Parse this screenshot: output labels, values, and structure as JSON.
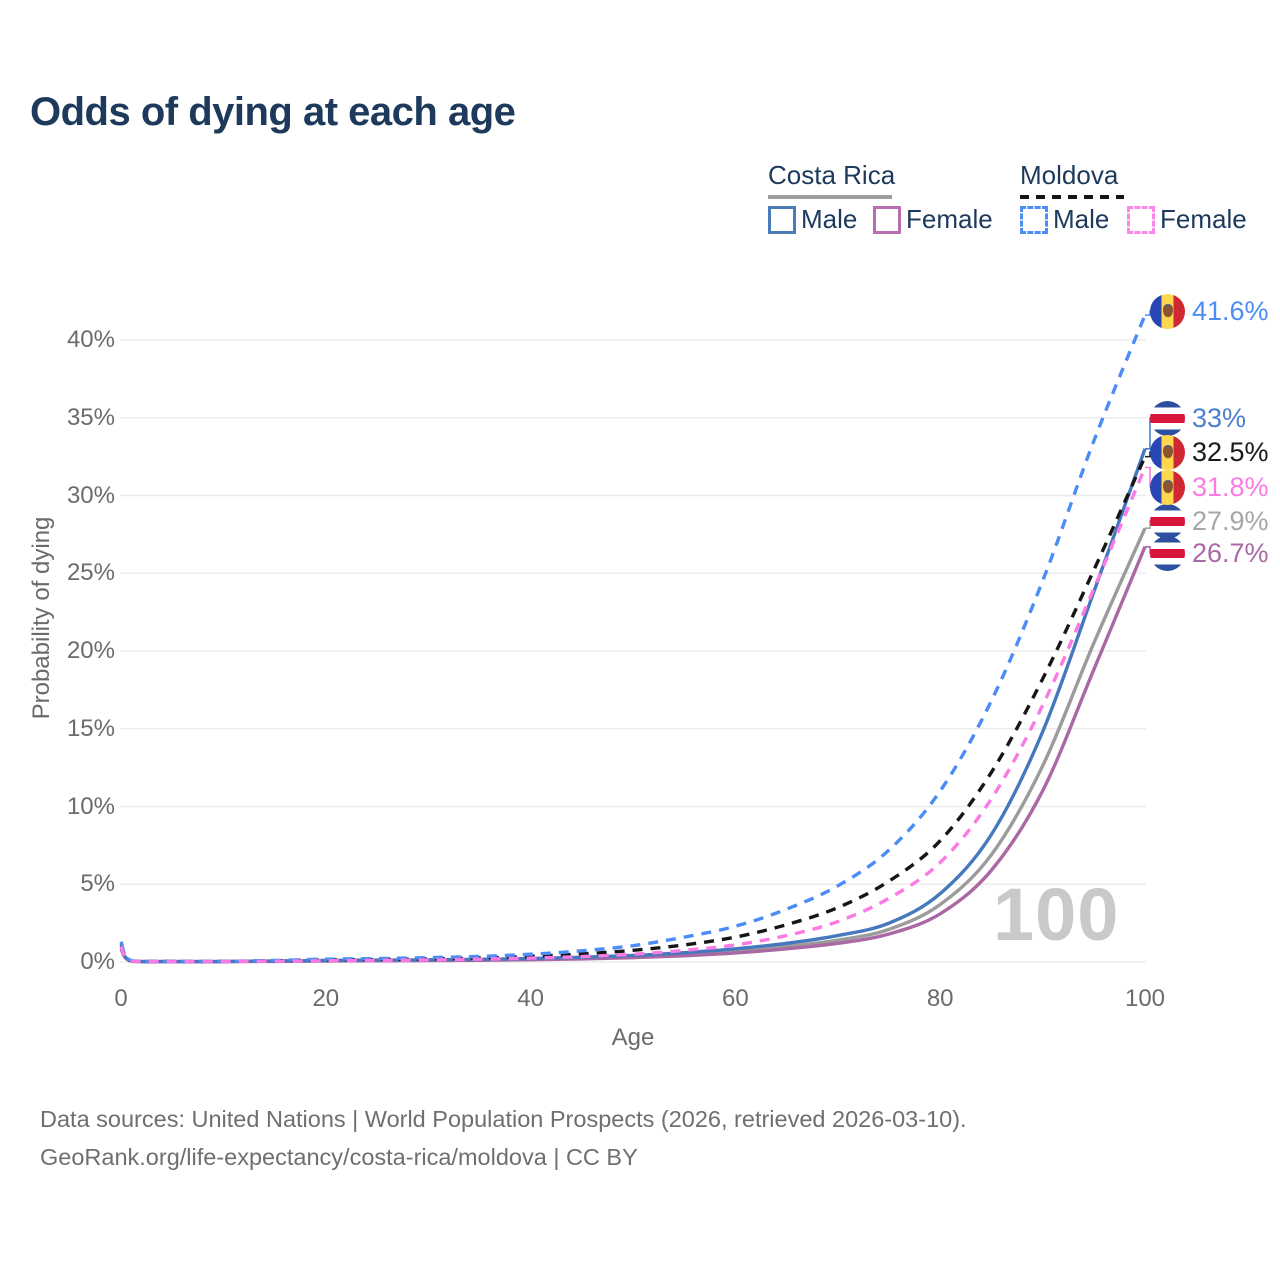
{
  "page": {
    "title": "Odds of dying at each age",
    "watermark_age": "100"
  },
  "legend": {
    "groups": [
      {
        "id": "costa-rica",
        "title": "Costa Rica",
        "line_style": "solid",
        "underline_color": "#9e9e9e",
        "items": [
          {
            "label": "Male",
            "color": "#4c7cb8"
          },
          {
            "label": "Female",
            "color": "#b66fb0"
          }
        ]
      },
      {
        "id": "moldova",
        "title": "Moldova",
        "line_style": "dashed",
        "underline_color": "#141414",
        "items": [
          {
            "label": "Male",
            "color": "#4d8df5"
          },
          {
            "label": "Female",
            "color": "#fd86e8"
          }
        ]
      }
    ]
  },
  "axes": {
    "y": {
      "title": "Probability of dying",
      "tick_labels": [
        "0%",
        "5%",
        "10%",
        "15%",
        "20%",
        "25%",
        "30%",
        "35%",
        "40%"
      ],
      "tick_values": [
        0,
        5,
        10,
        15,
        20,
        25,
        30,
        35,
        40
      ]
    },
    "x": {
      "title": "Age",
      "tick_labels": [
        "0",
        "20",
        "40",
        "60",
        "80",
        "100"
      ],
      "tick_values": [
        0,
        20,
        40,
        60,
        80,
        100
      ]
    }
  },
  "footer": {
    "line1": "Data sources: United Nations | World Population Prospects (2026, retrieved 2026-03-10).",
    "line2": "GeoRank.org/life-expectancy/costa-rica/moldova | CC BY"
  },
  "colors": {
    "title_text": "#1d3a5c",
    "axis_text": "#6b6b6b",
    "grid": "#ececec",
    "watermark": "#c9c9c9",
    "footer_text": "#6f6f6f"
  },
  "chart_data": {
    "type": "line",
    "title": "Odds of dying at each age",
    "xlabel": "Age",
    "ylabel": "Probability of dying",
    "xlim": [
      0,
      100
    ],
    "ylim_percent": [
      0,
      42
    ],
    "grid": "horizontal",
    "legend_position": "top-right",
    "x_ages": [
      0,
      1,
      5,
      10,
      15,
      20,
      25,
      30,
      35,
      40,
      45,
      50,
      55,
      60,
      65,
      70,
      75,
      80,
      85,
      90,
      95,
      100
    ],
    "series": [
      {
        "id": "cr_total",
        "name": "Costa Rica (both sexes)",
        "country": "Costa Rica",
        "sex": "both",
        "color": "#9b9b9b",
        "dashed": false,
        "flag": "costa-rica",
        "end_label": "27.9%",
        "end_value_percent": 27.9,
        "label_color": "#a6a6a6",
        "values_percent": [
          0.9,
          0.055,
          0.028,
          0.028,
          0.06,
          0.08,
          0.1,
          0.11,
          0.14,
          0.18,
          0.25,
          0.35,
          0.5,
          0.7,
          1.0,
          1.4,
          2.1,
          3.7,
          6.9,
          12.6,
          20.5,
          27.9
        ]
      },
      {
        "id": "cr_female",
        "name": "Costa Rica Female",
        "country": "Costa Rica",
        "sex": "female",
        "color": "#aa68a4",
        "dashed": false,
        "flag": "costa-rica",
        "end_label": "26.7%",
        "end_value_percent": 26.7,
        "label_color": "#aa68a4",
        "values_percent": [
          0.85,
          0.05,
          0.025,
          0.025,
          0.04,
          0.06,
          0.08,
          0.09,
          0.11,
          0.15,
          0.2,
          0.28,
          0.4,
          0.58,
          0.85,
          1.2,
          1.8,
          3.1,
          5.9,
          11.0,
          18.8,
          26.7
        ]
      },
      {
        "id": "cr_male",
        "name": "Costa Rica Male",
        "country": "Costa Rica",
        "sex": "male",
        "color": "#4678bd",
        "dashed": false,
        "flag": "costa-rica",
        "end_label": "33%",
        "end_value_percent": 33,
        "label_color": "#4a7fd0",
        "values_percent": [
          0.95,
          0.06,
          0.03,
          0.03,
          0.07,
          0.1,
          0.12,
          0.14,
          0.17,
          0.22,
          0.3,
          0.42,
          0.6,
          0.85,
          1.2,
          1.7,
          2.5,
          4.4,
          8.2,
          14.8,
          23.8,
          33.0
        ]
      },
      {
        "id": "md_total",
        "name": "Moldova (both sexes)",
        "country": "Moldova",
        "sex": "both",
        "color": "#161616",
        "dashed": true,
        "flag": "moldova",
        "end_label": "32.5%",
        "end_value_percent": 32.5,
        "label_color": "#1a1a1a",
        "values_percent": [
          1.15,
          0.08,
          0.035,
          0.035,
          0.08,
          0.13,
          0.16,
          0.2,
          0.26,
          0.36,
          0.52,
          0.75,
          1.1,
          1.6,
          2.4,
          3.5,
          5.2,
          7.8,
          12.2,
          18.2,
          25.2,
          32.5
        ]
      },
      {
        "id": "md_male",
        "name": "Moldova Male",
        "country": "Moldova",
        "sex": "male",
        "color": "#4b8cf6",
        "dashed": true,
        "flag": "moldova",
        "end_label": "41.6%",
        "end_value_percent": 41.6,
        "label_color": "#4b8cf6",
        "values_percent": [
          1.3,
          0.09,
          0.04,
          0.04,
          0.1,
          0.18,
          0.22,
          0.28,
          0.36,
          0.5,
          0.72,
          1.05,
          1.6,
          2.3,
          3.4,
          4.9,
          7.2,
          11.0,
          16.8,
          24.5,
          33.5,
          41.6
        ]
      },
      {
        "id": "md_female",
        "name": "Moldova Female",
        "country": "Moldova",
        "sex": "female",
        "color": "#fb7ae4",
        "dashed": true,
        "flag": "moldova",
        "end_label": "31.8%",
        "end_value_percent": 31.8,
        "label_color": "#fb7ae4",
        "values_percent": [
          1.0,
          0.07,
          0.03,
          0.03,
          0.05,
          0.08,
          0.1,
          0.13,
          0.18,
          0.25,
          0.35,
          0.5,
          0.75,
          1.1,
          1.7,
          2.6,
          4.1,
          6.4,
          10.5,
          16.5,
          24.0,
          31.8
        ]
      }
    ]
  }
}
